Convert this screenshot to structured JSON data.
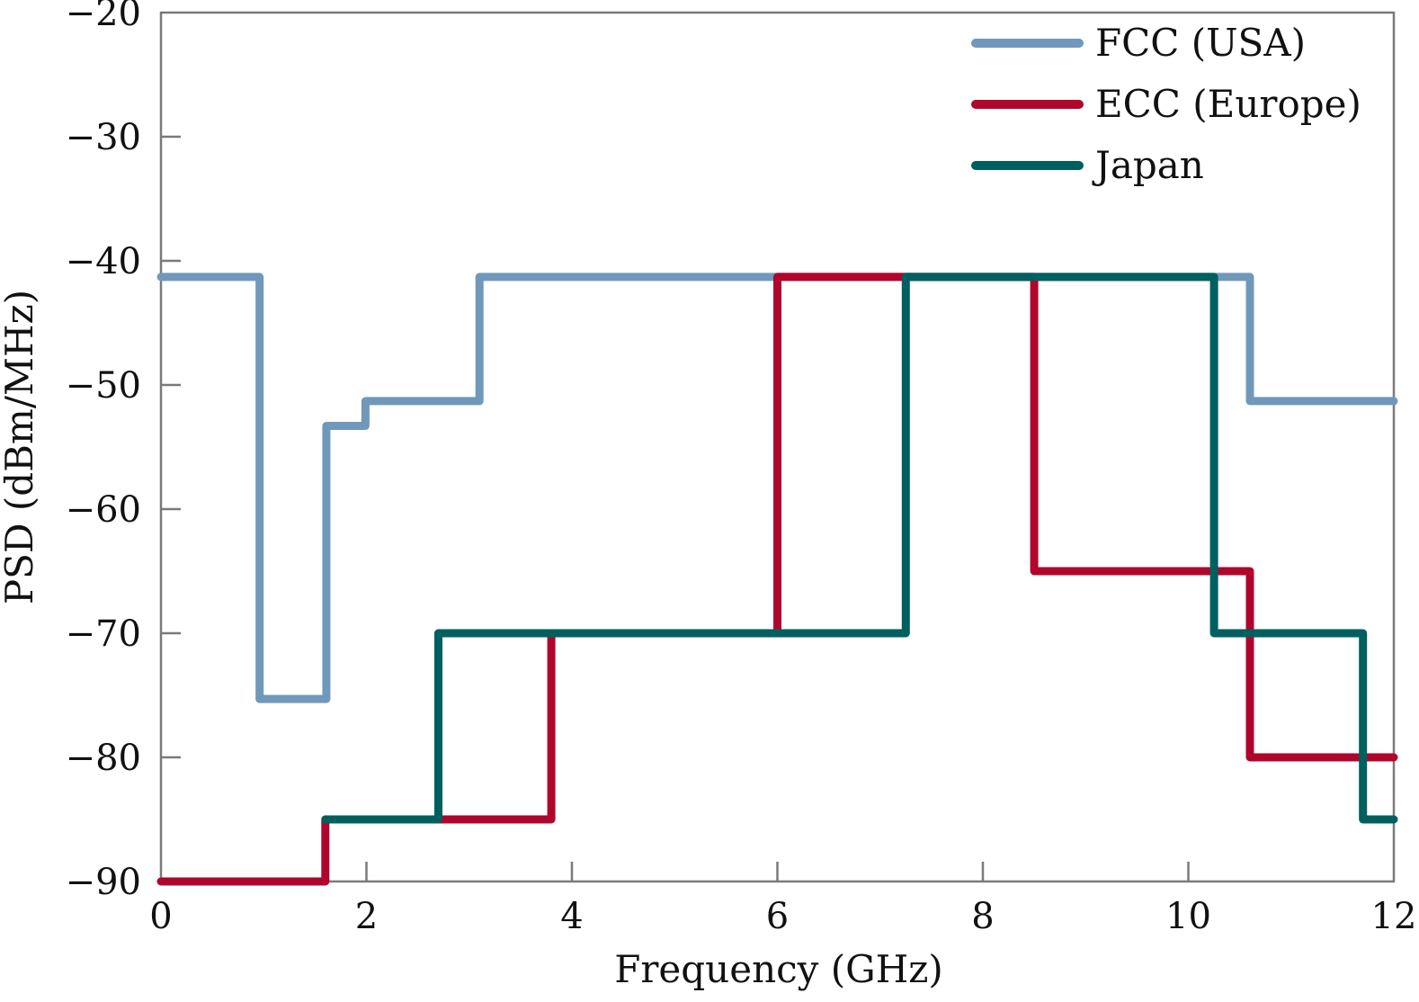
{
  "chart_data": {
    "type": "line",
    "title": "",
    "xlabel": "Frequency (GHz)",
    "ylabel": "PSD (dBm/MHz)",
    "xlim": [
      0,
      12
    ],
    "ylim": [
      -90,
      -20
    ],
    "xticks": [
      0,
      2,
      4,
      6,
      8,
      10,
      12
    ],
    "yticks": [
      -20,
      -30,
      -40,
      -50,
      -60,
      -70,
      -80,
      -90
    ],
    "xtick_labels": [
      "0",
      "2",
      "4",
      "6",
      "8",
      "10",
      "12"
    ],
    "ytick_labels": [
      "−20",
      "−30",
      "−40",
      "−50",
      "−60",
      "−70",
      "−80",
      "−90"
    ],
    "grid": false,
    "legend_position": "top-right",
    "series": [
      {
        "name": "FCC (USA)",
        "color": "#7098bb",
        "x": [
          0,
          0.96,
          0.96,
          1.61,
          1.61,
          1.99,
          1.99,
          3.1,
          3.1,
          10.6,
          10.6,
          12
        ],
        "y": [
          -41.3,
          -41.3,
          -75.3,
          -75.3,
          -53.3,
          -53.3,
          -51.3,
          -51.3,
          -41.3,
          -41.3,
          -51.3,
          -51.3
        ]
      },
      {
        "name": "ECC (Europe)",
        "color": "#b0062c",
        "x": [
          0,
          1.6,
          1.6,
          3.8,
          3.8,
          6.0,
          6.0,
          8.5,
          8.5,
          10.6,
          10.6,
          12
        ],
        "y": [
          -90,
          -90,
          -85,
          -85,
          -70,
          -70,
          -41.3,
          -41.3,
          -65,
          -65,
          -80,
          -80
        ]
      },
      {
        "name": "Japan",
        "color": "#005f5f",
        "x": [
          1.6,
          2.7,
          2.7,
          7.25,
          7.25,
          10.25,
          10.25,
          11.7,
          11.7,
          12
        ],
        "y": [
          -85,
          -85,
          -70,
          -70,
          -41.3,
          -41.3,
          -70,
          -70,
          -85,
          -85
        ]
      }
    ]
  }
}
